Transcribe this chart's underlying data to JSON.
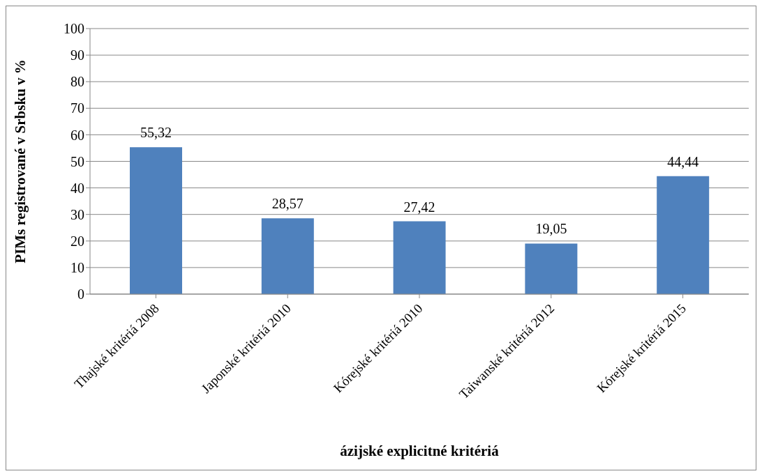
{
  "chart_data": {
    "type": "bar",
    "xlabel": "ázijské explicitné kritériá",
    "ylabel": "PIMs registrované v Srbsku v %",
    "categories": [
      "Thajské kritériá 2008",
      "Japonské kritériá 2010",
      "Kórejské kritériá 2010",
      "Taiwanské kritériá 2012",
      "Kórejské kritériá 2015"
    ],
    "values": [
      55.32,
      28.57,
      27.42,
      19.05,
      44.44
    ],
    "value_labels": [
      "55,32",
      "28,57",
      "27,42",
      "19,05",
      "44,44"
    ],
    "color": "#4f81bd",
    "ylim": [
      0,
      100
    ],
    "yticks": [
      0,
      10,
      20,
      30,
      40,
      50,
      60,
      70,
      80,
      90,
      100
    ],
    "grid": "y",
    "legend": false
  }
}
